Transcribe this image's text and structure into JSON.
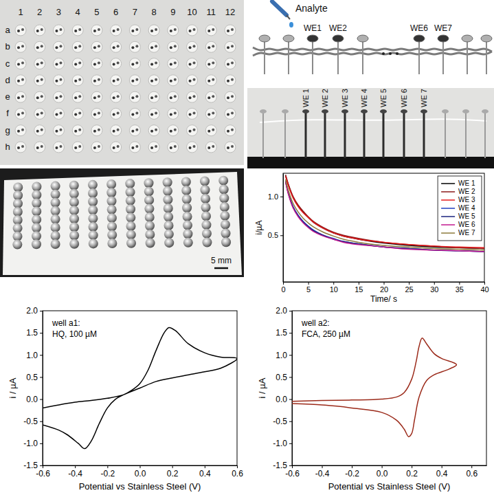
{
  "chart_data": [
    {
      "type": "line",
      "x": [
        0.5,
        1,
        2,
        3,
        4,
        5,
        6,
        8,
        10,
        12,
        15,
        20,
        25,
        30,
        35,
        40
      ],
      "series": [
        {
          "name": "WE 1",
          "color": "#000000",
          "values": [
            1.27,
            1.16,
            0.99,
            0.88,
            0.8,
            0.73,
            0.67,
            0.59,
            0.53,
            0.49,
            0.45,
            0.4,
            0.37,
            0.35,
            0.34,
            0.33
          ]
        },
        {
          "name": "WE 2",
          "color": "#8b1a1a",
          "values": [
            1.28,
            1.17,
            1.0,
            0.89,
            0.81,
            0.74,
            0.68,
            0.6,
            0.54,
            0.5,
            0.46,
            0.41,
            0.38,
            0.36,
            0.34,
            0.33
          ]
        },
        {
          "name": "WE 3",
          "color": "#e41a1c",
          "values": [
            1.26,
            1.15,
            0.98,
            0.87,
            0.79,
            0.73,
            0.67,
            0.59,
            0.53,
            0.49,
            0.45,
            0.41,
            0.38,
            0.36,
            0.35,
            0.34
          ]
        },
        {
          "name": "WE 4",
          "color": "#1f3fbf",
          "values": [
            1.2,
            1.06,
            0.87,
            0.76,
            0.68,
            0.62,
            0.57,
            0.5,
            0.46,
            0.42,
            0.39,
            0.35,
            0.33,
            0.31,
            0.3,
            0.29
          ]
        },
        {
          "name": "WE 5",
          "color": "#1a237e",
          "values": [
            1.19,
            1.05,
            0.86,
            0.75,
            0.67,
            0.61,
            0.56,
            0.5,
            0.45,
            0.42,
            0.39,
            0.35,
            0.33,
            0.31,
            0.3,
            0.29
          ]
        },
        {
          "name": "WE 6",
          "color": "#c2188f",
          "values": [
            1.19,
            1.04,
            0.85,
            0.74,
            0.66,
            0.6,
            0.55,
            0.49,
            0.45,
            0.41,
            0.38,
            0.35,
            0.32,
            0.31,
            0.3,
            0.29
          ]
        },
        {
          "name": "WE 7",
          "color": "#8c7a3a",
          "values": [
            1.22,
            1.09,
            0.91,
            0.8,
            0.72,
            0.66,
            0.61,
            0.54,
            0.49,
            0.45,
            0.41,
            0.37,
            0.35,
            0.33,
            0.32,
            0.31
          ]
        }
      ],
      "xlim": [
        0,
        40
      ],
      "xticks": [
        0,
        5,
        10,
        15,
        20,
        25,
        30,
        35,
        40
      ],
      "ylim": [
        -0.1,
        1.3
      ],
      "yticks": [
        0.5,
        {
          "value": 1,
          "label": "1.0"
        }
      ],
      "x_label": "Time/ s",
      "y_label": "i/µA",
      "legend": "top-right"
    },
    {
      "type": "line",
      "x": [
        -0.6,
        -0.5,
        -0.4,
        -0.3,
        -0.2,
        -0.1,
        -0.05,
        0,
        0.05,
        0.1,
        0.15,
        0.18,
        0.22,
        0.3,
        0.4,
        0.5,
        0.6,
        0.5,
        0.4,
        0.3,
        0.2,
        0.1,
        0,
        -0.1,
        -0.15,
        -0.2,
        -0.25,
        -0.3,
        -0.34,
        -0.38,
        -0.45,
        -0.5,
        -0.6
      ],
      "values": [
        -0.2,
        -0.13,
        -0.07,
        -0.03,
        0.02,
        0.1,
        0.2,
        0.35,
        0.65,
        1.1,
        1.5,
        1.62,
        1.55,
        1.25,
        1.05,
        0.95,
        0.92,
        0.7,
        0.62,
        0.55,
        0.48,
        0.4,
        0.25,
        0.1,
        0.0,
        -0.2,
        -0.55,
        -0.95,
        -1.12,
        -1.0,
        -0.8,
        -0.7,
        -0.58
      ],
      "color": "#000000",
      "xlim": [
        -0.6,
        0.6
      ],
      "xticks": [
        -0.6,
        -0.4,
        -0.2,
        {
          "value": 0,
          "label": "0.0"
        },
        0.2,
        0.4,
        0.6
      ],
      "ylim": [
        -1.5,
        2.0
      ],
      "yticks": [
        -1.5,
        {
          "value": -1,
          "label": "-1.0"
        },
        -0.5,
        {
          "value": 0,
          "label": "0.0"
        },
        0.5,
        {
          "value": 1,
          "label": "1.0"
        },
        1.5,
        {
          "value": 2,
          "label": "2.0"
        }
      ],
      "x_label": "Potential vs Stainless Steel (V)",
      "y_label": "i / µA",
      "annotations": [
        "well a1:",
        "HQ, 100 µM"
      ]
    },
    {
      "type": "line",
      "x": [
        -0.6,
        -0.4,
        -0.2,
        0,
        0.1,
        0.15,
        0.2,
        0.23,
        0.25,
        0.27,
        0.3,
        0.35,
        0.4,
        0.5,
        0.45,
        0.35,
        0.3,
        0.25,
        0.22,
        0.2,
        0.18,
        0.15,
        0.1,
        0,
        -0.2,
        -0.3,
        -0.4,
        -0.6
      ],
      "values": [
        -0.05,
        -0.03,
        -0.02,
        0.0,
        0.05,
        0.15,
        0.45,
        0.85,
        1.2,
        1.38,
        1.25,
        1.03,
        0.92,
        0.78,
        0.68,
        0.55,
        0.42,
        0.05,
        -0.45,
        -0.78,
        -0.85,
        -0.68,
        -0.48,
        -0.3,
        -0.2,
        -0.16,
        -0.13,
        -0.1
      ],
      "color": "#9b2a1a",
      "xlim": [
        -0.6,
        0.7
      ],
      "xticks": [
        -0.6,
        -0.4,
        -0.2,
        {
          "value": 0,
          "label": "0.0"
        },
        0.2,
        0.4,
        0.6
      ],
      "ylim": [
        -1.5,
        2.0
      ],
      "yticks": [
        -1.5,
        {
          "value": -1,
          "label": "-1.0"
        },
        -0.5,
        {
          "value": 0,
          "label": "0.0"
        },
        0.5,
        {
          "value": 1,
          "label": "1.0"
        },
        1.5,
        {
          "value": 2,
          "label": "2.0"
        }
      ],
      "x_label": "Potential vs Stainless Steel (V)",
      "y_label": "i / µA",
      "annotations": [
        "well a2:",
        "FCA, 250 µM"
      ]
    }
  ],
  "photo_array": {
    "column_labels": [
      "1",
      "2",
      "3",
      "4",
      "5",
      "6",
      "7",
      "8",
      "9",
      "10",
      "11",
      "12"
    ],
    "row_labels": [
      "a",
      "b",
      "c",
      "d",
      "e",
      "f",
      "g",
      "h"
    ]
  },
  "photo_paper": {
    "scale_bar": "5 mm"
  },
  "schematic": {
    "analyte": "Analyte",
    "electrode_labels": [
      "WE1",
      "WE2",
      "WE6",
      "WE7"
    ]
  },
  "photo_electrodes": {
    "electrode_labels": [
      "WE 1",
      "WE 2",
      "WE 3",
      "WE 4",
      "WE 5",
      "WE 6",
      "WE 7"
    ]
  }
}
